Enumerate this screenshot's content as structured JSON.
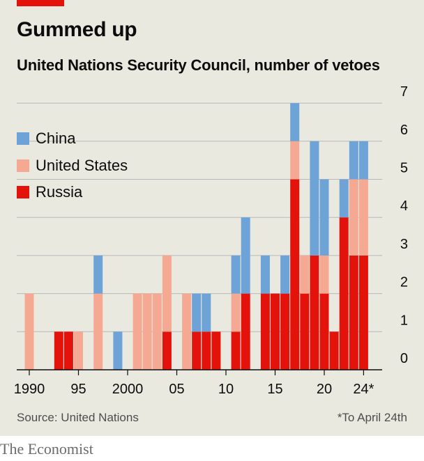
{
  "header": {
    "title": "Gummed up",
    "subtitle": "United Nations Security Council, number of vetoes"
  },
  "footer": {
    "source": "Source: United Nations",
    "note": "*To April 24th",
    "brand": "The Economist"
  },
  "colors": {
    "china": "#6da3d6",
    "united_states": "#f5a992",
    "russia": "#e3120b",
    "background": "#e9e9e0",
    "grid": "#b7b7b7",
    "accent": "#e3120b"
  },
  "chart_data": {
    "type": "bar",
    "stacked": true,
    "title": "Gummed up",
    "subtitle": "United Nations Security Council, number of vetoes",
    "x": [
      1990,
      1991,
      1992,
      1993,
      1994,
      1995,
      1996,
      1997,
      1998,
      1999,
      2000,
      2001,
      2002,
      2003,
      2004,
      2005,
      2006,
      2007,
      2008,
      2009,
      2010,
      2011,
      2012,
      2013,
      2014,
      2015,
      2016,
      2017,
      2018,
      2019,
      2020,
      2021,
      2022,
      2023,
      2024
    ],
    "x_tick_labels": [
      {
        "x": 1990,
        "label": "1990"
      },
      {
        "x": 1995,
        "label": "95"
      },
      {
        "x": 2000,
        "label": "2000"
      },
      {
        "x": 2005,
        "label": "05"
      },
      {
        "x": 2010,
        "label": "10"
      },
      {
        "x": 2015,
        "label": "15"
      },
      {
        "x": 2020,
        "label": "20"
      },
      {
        "x": 2024,
        "label": "24*"
      }
    ],
    "y_ticks": [
      "0",
      "1",
      "2",
      "3",
      "4",
      "5",
      "6",
      "7"
    ],
    "ylim": [
      0,
      7
    ],
    "grid": true,
    "legend_position": "top-left",
    "series": [
      {
        "name": "Russia",
        "color": "#e3120b",
        "values": [
          0,
          0,
          0,
          1,
          1,
          0,
          0,
          0,
          0,
          0,
          0,
          0,
          0,
          0,
          1,
          0,
          0,
          1,
          1,
          1,
          0,
          1,
          2,
          0,
          2,
          2,
          2,
          5,
          2,
          3,
          2,
          1,
          4,
          3,
          3
        ]
      },
      {
        "name": "United States",
        "color": "#f5a992",
        "values": [
          2,
          0,
          0,
          0,
          0,
          1,
          0,
          2,
          0,
          0,
          0,
          2,
          2,
          2,
          2,
          0,
          2,
          0,
          0,
          0,
          0,
          1,
          0,
          0,
          0,
          0,
          0,
          1,
          1,
          0,
          1,
          0,
          0,
          2,
          2
        ]
      },
      {
        "name": "China",
        "color": "#6da3d6",
        "values": [
          0,
          0,
          0,
          0,
          0,
          0,
          0,
          1,
          0,
          1,
          0,
          0,
          0,
          0,
          0,
          0,
          0,
          1,
          1,
          0,
          0,
          1,
          2,
          0,
          1,
          0,
          1,
          1,
          0,
          3,
          2,
          0,
          1,
          1,
          1
        ]
      }
    ]
  },
  "legend": {
    "items": [
      {
        "label": "China",
        "color": "#6da3d6"
      },
      {
        "label": "United States",
        "color": "#f5a992"
      },
      {
        "label": "Russia",
        "color": "#e3120b"
      }
    ]
  }
}
